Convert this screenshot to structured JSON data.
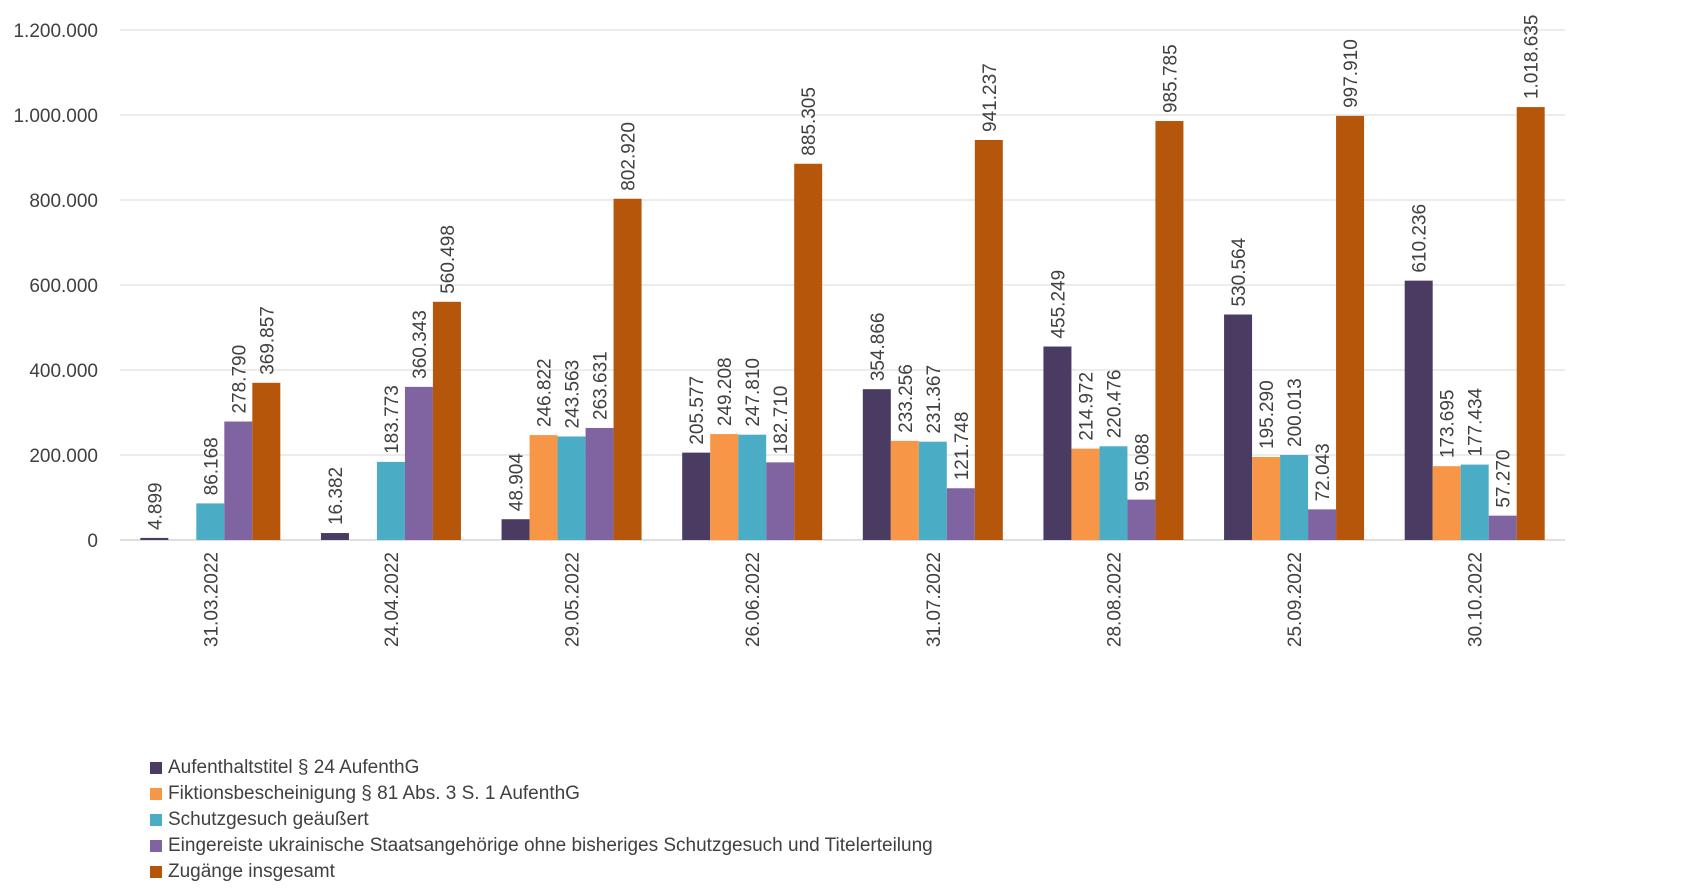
{
  "chart_data": {
    "type": "bar",
    "title": "",
    "xlabel": "",
    "ylabel": "",
    "ylim": [
      0,
      1200000
    ],
    "yticks": [
      0,
      200000,
      400000,
      600000,
      800000,
      1000000,
      1200000
    ],
    "ytick_labels": [
      "0",
      "200.000",
      "400.000",
      "600.000",
      "800.000",
      "1.000.000",
      "1.200.000"
    ],
    "grid": true,
    "legend_position": "bottom-left",
    "categories": [
      "31.03.2022",
      "24.04.2022",
      "29.05.2022",
      "26.06.2022",
      "31.07.2022",
      "28.08.2022",
      "25.09.2022",
      "30.10.2022"
    ],
    "series": [
      {
        "name": "Aufenthaltstitel § 24 AufenthG",
        "color": "#4a3b63",
        "values": [
          4899,
          16382,
          48904,
          205577,
          354866,
          455249,
          530564,
          610236
        ],
        "labels": [
          "4.899",
          "16.382",
          "48.904",
          "205.577",
          "354.866",
          "455.249",
          "530.564",
          "610.236"
        ]
      },
      {
        "name": "Fiktionsbescheinigung § 81 Abs. 3 S. 1 AufenthG",
        "color": "#f79646",
        "values": [
          null,
          null,
          246822,
          249208,
          233256,
          214972,
          195290,
          173695
        ],
        "labels": [
          "",
          "",
          "246.822",
          "249.208",
          "233.256",
          "214.972",
          "195.290",
          "173.695"
        ]
      },
      {
        "name": "Schutzgesuch geäußert",
        "color": "#4bacc6",
        "values": [
          86168,
          183773,
          243563,
          247810,
          231367,
          220476,
          200013,
          177434
        ],
        "labels": [
          "86.168",
          "183.773",
          "243.563",
          "247.810",
          "231.367",
          "220.476",
          "200.013",
          "177.434"
        ]
      },
      {
        "name": "Eingereiste ukrainische Staatsangehörige ohne bisheriges Schutzgesuch und Titelerteilung",
        "color": "#8064a2",
        "values": [
          278790,
          360343,
          263631,
          182710,
          121748,
          95088,
          72043,
          57270
        ],
        "labels": [
          "278.790",
          "360.343",
          "263.631",
          "182.710",
          "121.748",
          "95.088",
          "72.043",
          "57.270"
        ]
      },
      {
        "name": "Zugänge insgesamt",
        "color": "#b5560a",
        "values": [
          369857,
          560498,
          802920,
          885305,
          941237,
          985785,
          997910,
          1018635
        ],
        "labels": [
          "369.857",
          "560.498",
          "802.920",
          "885.305",
          "941.237",
          "985.785",
          "997.910",
          "1.018.635"
        ]
      }
    ]
  }
}
